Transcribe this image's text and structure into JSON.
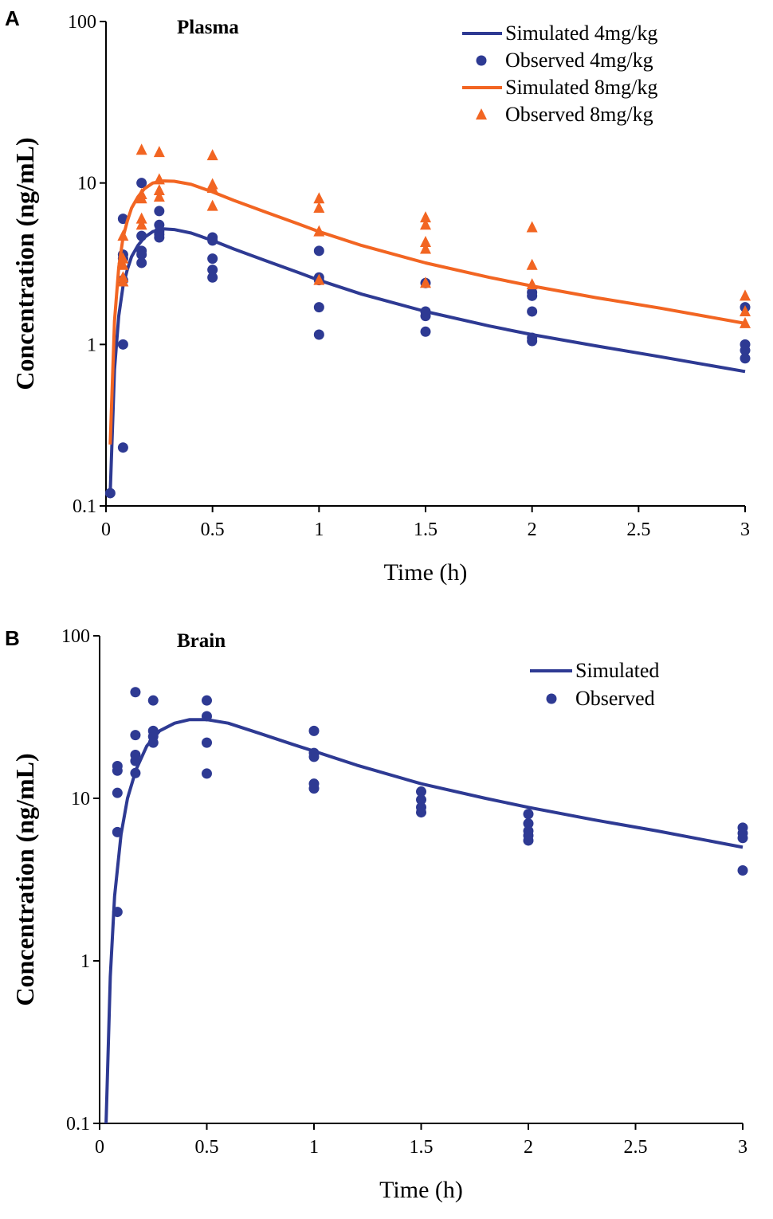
{
  "chart_data": [
    {
      "type": "line",
      "panel_label": "A",
      "title": "Plasma",
      "xlabel": "Time (h)",
      "ylabel": "Concentration (ng/mL)",
      "xlim": [
        0,
        3
      ],
      "ylim": [
        0.1,
        100
      ],
      "yscale": "log",
      "xticks": [
        "0",
        "0.5",
        "1",
        "1.5",
        "2",
        "2.5",
        "3"
      ],
      "yticks": [
        "0.1",
        "1",
        "10",
        "100"
      ],
      "legend_position": "top-right",
      "colors": {
        "low": "#2e3a93",
        "high": "#f26522"
      },
      "series": [
        {
          "name": "Simulated 4mg/kg",
          "kind": "line",
          "color": "#2e3a93",
          "x": [
            0.02,
            0.04,
            0.06,
            0.08,
            0.1,
            0.12,
            0.15,
            0.18,
            0.22,
            0.27,
            0.32,
            0.4,
            0.5,
            0.6,
            0.75,
            0.9,
            1.0,
            1.2,
            1.5,
            1.8,
            2.0,
            2.3,
            2.6,
            3.0
          ],
          "y": [
            0.12,
            0.7,
            1.5,
            2.3,
            2.9,
            3.5,
            4.1,
            4.6,
            5.0,
            5.2,
            5.15,
            4.9,
            4.4,
            3.9,
            3.3,
            2.8,
            2.5,
            2.05,
            1.6,
            1.3,
            1.15,
            0.98,
            0.84,
            0.68
          ]
        },
        {
          "name": "Observed  4mg/kg",
          "kind": "points",
          "marker": "circle",
          "color": "#2e3a93",
          "x": [
            0.02,
            0.08,
            0.08,
            0.08,
            0.08,
            0.08,
            0.08,
            0.167,
            0.167,
            0.167,
            0.167,
            0.167,
            0.25,
            0.25,
            0.25,
            0.25,
            0.25,
            0.5,
            0.5,
            0.5,
            0.5,
            0.5,
            1,
            1,
            1,
            1,
            1,
            1.5,
            1.5,
            1.5,
            1.5,
            2,
            2,
            2,
            2,
            2,
            3,
            3,
            3,
            3
          ],
          "y": [
            0.12,
            0.23,
            1.0,
            2.5,
            3.4,
            3.6,
            6.0,
            10.0,
            4.7,
            3.8,
            3.6,
            3.2,
            6.7,
            5.5,
            5.0,
            4.8,
            4.6,
            4.6,
            4.4,
            3.4,
            2.9,
            2.6,
            3.8,
            2.6,
            2.5,
            1.7,
            1.15,
            2.4,
            1.6,
            1.5,
            1.2,
            2.1,
            2.0,
            1.6,
            1.1,
            1.05,
            1.7,
            1.0,
            0.92,
            0.82
          ]
        },
        {
          "name": "Simulated 8mg/kg",
          "kind": "line",
          "color": "#f26522",
          "x": [
            0.02,
            0.04,
            0.06,
            0.08,
            0.1,
            0.12,
            0.15,
            0.18,
            0.22,
            0.27,
            0.32,
            0.4,
            0.5,
            0.6,
            0.75,
            0.9,
            1.0,
            1.2,
            1.5,
            1.8,
            2.0,
            2.3,
            2.6,
            3.0
          ],
          "y": [
            0.24,
            1.4,
            3.0,
            4.6,
            5.8,
            7.0,
            8.2,
            9.2,
            10.0,
            10.3,
            10.25,
            9.8,
            8.8,
            7.8,
            6.6,
            5.6,
            5.0,
            4.1,
            3.2,
            2.6,
            2.3,
            1.95,
            1.68,
            1.35
          ]
        },
        {
          "name": "Observed  8mg/kg",
          "kind": "points",
          "marker": "triangle",
          "color": "#f26522",
          "x": [
            0.08,
            0.08,
            0.08,
            0.08,
            0.08,
            0.167,
            0.167,
            0.167,
            0.167,
            0.167,
            0.25,
            0.25,
            0.25,
            0.25,
            0.5,
            0.5,
            0.5,
            0.5,
            1,
            1,
            1,
            1,
            1.5,
            1.5,
            1.5,
            1.5,
            1.5,
            2,
            2,
            2,
            3,
            3,
            3
          ],
          "y": [
            4.7,
            3.4,
            3.1,
            2.6,
            2.45,
            16.0,
            8.5,
            8.0,
            6.0,
            5.5,
            15.5,
            10.5,
            9.0,
            8.2,
            14.8,
            9.8,
            9.3,
            7.2,
            8.0,
            7.0,
            5.0,
            2.5,
            6.1,
            5.5,
            4.3,
            3.9,
            2.4,
            5.3,
            3.1,
            2.35,
            2.0,
            1.6,
            1.35
          ]
        }
      ]
    },
    {
      "type": "line",
      "panel_label": "B",
      "title": "Brain",
      "xlabel": "Time (h)",
      "ylabel": "Concentration (ng/mL)",
      "xlim": [
        0,
        3
      ],
      "ylim": [
        0.1,
        100
      ],
      "yscale": "log",
      "xticks": [
        "0",
        "0.5",
        "1",
        "1.5",
        "2",
        "2.5",
        "3"
      ],
      "yticks": [
        "0.1",
        "1",
        "10",
        "100"
      ],
      "legend_position": "top-right",
      "colors": {
        "low": "#2e3a93"
      },
      "series": [
        {
          "name": "Simulated",
          "kind": "line",
          "color": "#2e3a93",
          "x": [
            0.03,
            0.05,
            0.07,
            0.1,
            0.13,
            0.17,
            0.22,
            0.28,
            0.35,
            0.42,
            0.5,
            0.6,
            0.75,
            0.9,
            1.0,
            1.2,
            1.5,
            1.8,
            2.0,
            2.3,
            2.6,
            3.0
          ],
          "y": [
            0.1,
            0.8,
            2.5,
            6.0,
            10.0,
            15.0,
            21.0,
            26.0,
            29.0,
            30.5,
            30.5,
            29.0,
            25.0,
            21.5,
            19.5,
            16.0,
            12.3,
            10.0,
            8.8,
            7.4,
            6.3,
            5.0
          ]
        },
        {
          "name": "Observed",
          "kind": "points",
          "marker": "circle",
          "color": "#2e3a93",
          "x": [
            0.083,
            0.083,
            0.083,
            0.083,
            0.083,
            0.167,
            0.167,
            0.167,
            0.167,
            0.167,
            0.25,
            0.25,
            0.25,
            0.25,
            0.5,
            0.5,
            0.5,
            0.5,
            1,
            1,
            1,
            1,
            1,
            1.5,
            1.5,
            1.5,
            1.5,
            2,
            2,
            2,
            2,
            2,
            3,
            3,
            3,
            3
          ],
          "y": [
            2.0,
            6.2,
            10.8,
            14.8,
            15.8,
            45.0,
            24.5,
            18.5,
            17.0,
            14.3,
            40.0,
            26.0,
            24.0,
            22.0,
            40.0,
            32.0,
            22.0,
            14.2,
            26.0,
            19.0,
            18.0,
            12.3,
            11.5,
            11.0,
            9.8,
            8.8,
            8.2,
            8.0,
            7.0,
            6.3,
            5.9,
            5.5,
            6.6,
            6.1,
            5.7,
            3.6
          ]
        }
      ]
    }
  ]
}
